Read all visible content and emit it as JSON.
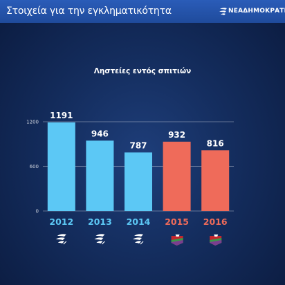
{
  "header": {
    "title": "Στοιχεία για την εγκληματικότητα",
    "logo_text": "ΝΕΑΔΗΜΟΚΡΑΤΙΑ"
  },
  "colors": {
    "blue_bar": "#5cc8f5",
    "red_bar": "#ef6b5a",
    "blue_year": "#5cc8f5",
    "red_year": "#ef6b5a"
  },
  "chart_data": {
    "type": "bar",
    "title": "Ληστείες εντός σπιτιών",
    "categories": [
      "2012",
      "2013",
      "2014",
      "2015",
      "2016"
    ],
    "values": [
      1191,
      946,
      787,
      932,
      816
    ],
    "value_labels": [
      "1191",
      "946",
      "787",
      "932",
      "816"
    ],
    "bar_colors": [
      "#5cc8f5",
      "#5cc8f5",
      "#5cc8f5",
      "#ef6b5a",
      "#ef6b5a"
    ],
    "category_icons": [
      "nd-logo-icon",
      "nd-logo-icon",
      "nd-logo-icon",
      "syriza-logo-icon",
      "syriza-logo-icon"
    ],
    "yticks": [
      0,
      600,
      1200
    ],
    "ytick_labels": [
      "0",
      "600",
      "1200"
    ],
    "ylim": [
      0,
      1200
    ],
    "grid": true,
    "xlabel": "",
    "ylabel": ""
  }
}
